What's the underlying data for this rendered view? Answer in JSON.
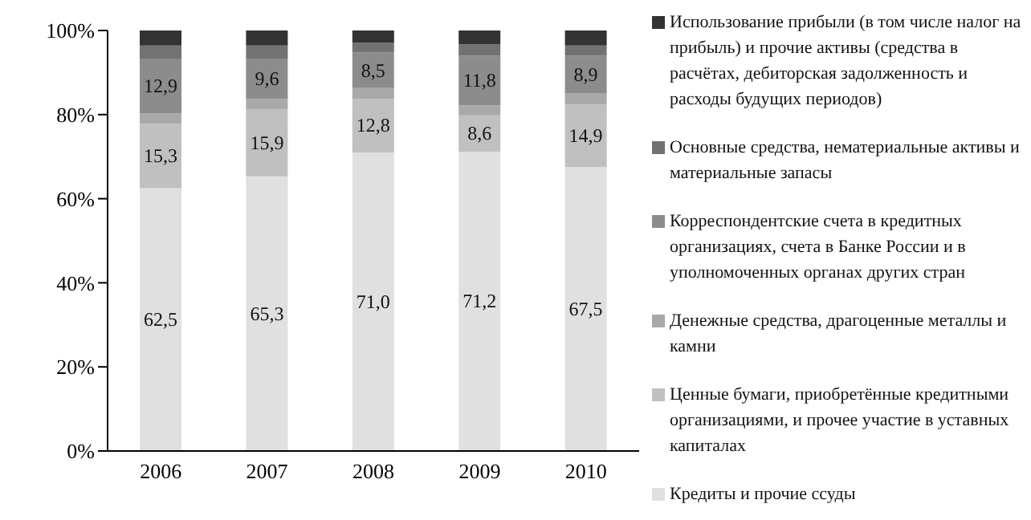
{
  "chart_data": {
    "type": "bar",
    "stacked": true,
    "categories": [
      "2006",
      "2007",
      "2008",
      "2009",
      "2010"
    ],
    "series": [
      {
        "name": "Кредиты и прочие ссуды",
        "color": "#e0e0e0",
        "values": [
          62.5,
          65.3,
          71.0,
          71.2,
          67.5
        ],
        "value_labels": [
          "62,5",
          "65,3",
          "71,0",
          "71,2",
          "67,5"
        ]
      },
      {
        "name": "Ценные бумаги, приобретённые кредитными организациями, и прочее участие в уставных капиталах",
        "color": "#c0c0c0",
        "values": [
          15.3,
          15.9,
          12.8,
          8.6,
          14.9
        ],
        "value_labels": [
          "15,3",
          "15,9",
          "12,8",
          "8,6",
          "14,9"
        ]
      },
      {
        "name": "Денежные средства, драгоценные металлы и камни",
        "color": "#a9a9a9",
        "values": [
          2.5,
          2.5,
          2.5,
          2.4,
          2.7
        ]
      },
      {
        "name": "Корреспондентские счета в кредитных организациях, счета в Банке России и в уполномоченных органах других стран",
        "color": "#8c8c8c",
        "values": [
          12.9,
          9.6,
          8.5,
          11.8,
          8.9
        ],
        "value_labels": [
          "12,9",
          "9,6",
          "8,5",
          "11,8",
          "8,9"
        ]
      },
      {
        "name": "Основные средства, нематериальные активы и материальные запасы",
        "color": "#727272",
        "values": [
          3.2,
          3.1,
          2.3,
          2.7,
          2.4
        ]
      },
      {
        "name": "Использование прибыли (в том числе налог на прибыль) и прочие активы (средства в расчётах, дебиторская задолженность и расходы будущих периодов)",
        "color": "#333333",
        "values": [
          3.6,
          3.6,
          2.9,
          3.3,
          3.6
        ]
      }
    ],
    "ylim": [
      0,
      100
    ],
    "yticks": [
      {
        "value": 0,
        "label": "0%"
      },
      {
        "value": 20,
        "label": "20%"
      },
      {
        "value": 40,
        "label": "40%"
      },
      {
        "value": 60,
        "label": "60%"
      },
      {
        "value": 80,
        "label": "80%"
      },
      {
        "value": 100,
        "label": "100%"
      }
    ],
    "grid": false,
    "legend": "right"
  }
}
